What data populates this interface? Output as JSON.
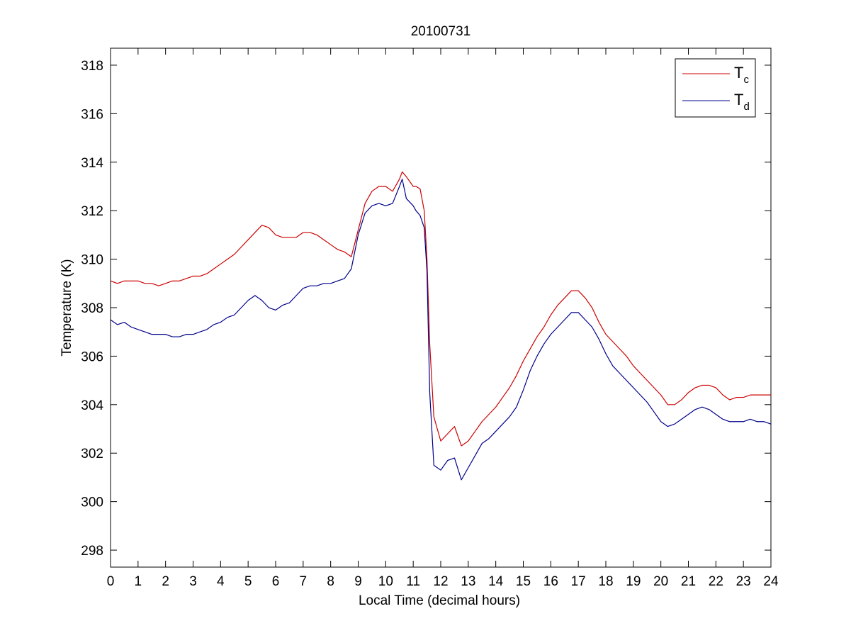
{
  "chart_data": {
    "type": "line",
    "title": "20100731",
    "xlabel": "Local Time (decimal hours)",
    "ylabel": "Temperature (K)",
    "xlim": [
      0,
      24
    ],
    "ylim": [
      297.3,
      318.7
    ],
    "xticks": [
      0,
      1,
      2,
      3,
      4,
      5,
      6,
      7,
      8,
      9,
      10,
      11,
      12,
      13,
      14,
      15,
      16,
      17,
      18,
      19,
      20,
      21,
      22,
      23,
      24
    ],
    "yticks": [
      298,
      300,
      302,
      304,
      306,
      308,
      310,
      312,
      314,
      316,
      318
    ],
    "grid": false,
    "legend": {
      "placement": "top-right",
      "entries": [
        {
          "base": "T",
          "sub": "c"
        },
        {
          "base": "T",
          "sub": "d"
        }
      ]
    },
    "series": [
      {
        "name": "Tc",
        "color": "#cc0000",
        "x": [
          0,
          0.25,
          0.5,
          0.75,
          1,
          1.25,
          1.5,
          1.75,
          2,
          2.25,
          2.5,
          2.75,
          3,
          3.25,
          3.5,
          3.75,
          4,
          4.25,
          4.5,
          4.75,
          5,
          5.25,
          5.5,
          5.75,
          6,
          6.25,
          6.5,
          6.75,
          7,
          7.25,
          7.5,
          7.75,
          8,
          8.25,
          8.5,
          8.75,
          9,
          9.25,
          9.5,
          9.75,
          10,
          10.25,
          10.5,
          10.6,
          10.75,
          11,
          11.1,
          11.25,
          11.4,
          11.5,
          11.6,
          11.75,
          12,
          12.25,
          12.5,
          12.75,
          13,
          13.25,
          13.5,
          13.75,
          14,
          14.25,
          14.5,
          14.75,
          15,
          15.25,
          15.5,
          15.75,
          16,
          16.25,
          16.5,
          16.75,
          17,
          17.25,
          17.5,
          17.75,
          18,
          18.25,
          18.5,
          18.75,
          19,
          19.25,
          19.5,
          19.75,
          20,
          20.25,
          20.5,
          20.75,
          21,
          21.25,
          21.5,
          21.75,
          22,
          22.25,
          22.5,
          22.75,
          23,
          23.25,
          23.5,
          23.75,
          24
        ],
        "y": [
          309.1,
          309.0,
          309.1,
          309.1,
          309.1,
          309.0,
          309.0,
          308.9,
          309.0,
          309.1,
          309.1,
          309.2,
          309.3,
          309.3,
          309.4,
          309.6,
          309.8,
          310.0,
          310.2,
          310.5,
          310.8,
          311.1,
          311.4,
          311.3,
          311.0,
          310.9,
          310.9,
          310.9,
          311.1,
          311.1,
          311.0,
          310.8,
          310.6,
          310.4,
          310.3,
          310.1,
          311.2,
          312.3,
          312.8,
          313.0,
          313.0,
          312.8,
          313.3,
          313.6,
          313.4,
          313.0,
          313.0,
          312.9,
          312.0,
          310.0,
          306.5,
          303.5,
          302.5,
          302.8,
          303.1,
          302.3,
          302.5,
          302.9,
          303.3,
          303.6,
          303.9,
          304.3,
          304.7,
          305.2,
          305.8,
          306.3,
          306.8,
          307.2,
          307.7,
          308.1,
          308.4,
          308.7,
          308.7,
          308.4,
          308.0,
          307.4,
          306.9,
          306.6,
          306.3,
          306.0,
          305.6,
          305.3,
          305.0,
          304.7,
          304.4,
          304.0,
          304.0,
          304.2,
          304.5,
          304.7,
          304.8,
          304.8,
          304.7,
          304.4,
          304.2,
          304.3,
          304.3,
          304.4,
          304.4,
          304.4,
          304.4
        ]
      },
      {
        "name": "Td",
        "color": "#00008b",
        "x": [
          0,
          0.25,
          0.5,
          0.75,
          1,
          1.25,
          1.5,
          1.75,
          2,
          2.25,
          2.5,
          2.75,
          3,
          3.25,
          3.5,
          3.75,
          4,
          4.25,
          4.5,
          4.75,
          5,
          5.25,
          5.5,
          5.75,
          6,
          6.25,
          6.5,
          6.75,
          7,
          7.25,
          7.5,
          7.75,
          8,
          8.25,
          8.5,
          8.75,
          9,
          9.25,
          9.5,
          9.75,
          10,
          10.25,
          10.5,
          10.6,
          10.75,
          11,
          11.1,
          11.25,
          11.4,
          11.5,
          11.6,
          11.75,
          12,
          12.25,
          12.5,
          12.75,
          13,
          13.25,
          13.5,
          13.75,
          14,
          14.25,
          14.5,
          14.75,
          15,
          15.25,
          15.5,
          15.75,
          16,
          16.25,
          16.5,
          16.75,
          17,
          17.25,
          17.5,
          17.75,
          18,
          18.25,
          18.5,
          18.75,
          19,
          19.25,
          19.5,
          19.75,
          20,
          20.25,
          20.5,
          20.75,
          21,
          21.25,
          21.5,
          21.75,
          22,
          22.25,
          22.5,
          22.75,
          23,
          23.25,
          23.5,
          23.75,
          24
        ],
        "y": [
          307.5,
          307.3,
          307.4,
          307.2,
          307.1,
          307.0,
          306.9,
          306.9,
          306.9,
          306.8,
          306.8,
          306.9,
          306.9,
          307.0,
          307.1,
          307.3,
          307.4,
          307.6,
          307.7,
          308.0,
          308.3,
          308.5,
          308.3,
          308.0,
          307.9,
          308.1,
          308.2,
          308.5,
          308.8,
          308.9,
          308.9,
          309.0,
          309.0,
          309.1,
          309.2,
          309.6,
          311.0,
          311.9,
          312.2,
          312.3,
          312.2,
          312.3,
          313.0,
          313.3,
          312.5,
          312.2,
          312.0,
          311.8,
          311.3,
          309.5,
          304.5,
          301.5,
          301.3,
          301.7,
          301.8,
          300.9,
          301.4,
          301.9,
          302.4,
          302.6,
          302.9,
          303.2,
          303.5,
          303.9,
          304.6,
          305.4,
          306.0,
          306.5,
          306.9,
          307.2,
          307.5,
          307.8,
          307.8,
          307.5,
          307.2,
          306.7,
          306.1,
          305.6,
          305.3,
          305.0,
          304.7,
          304.4,
          304.1,
          303.7,
          303.3,
          303.1,
          303.2,
          303.4,
          303.6,
          303.8,
          303.9,
          303.8,
          303.6,
          303.4,
          303.3,
          303.3,
          303.3,
          303.4,
          303.3,
          303.3,
          303.2
        ]
      }
    ]
  }
}
